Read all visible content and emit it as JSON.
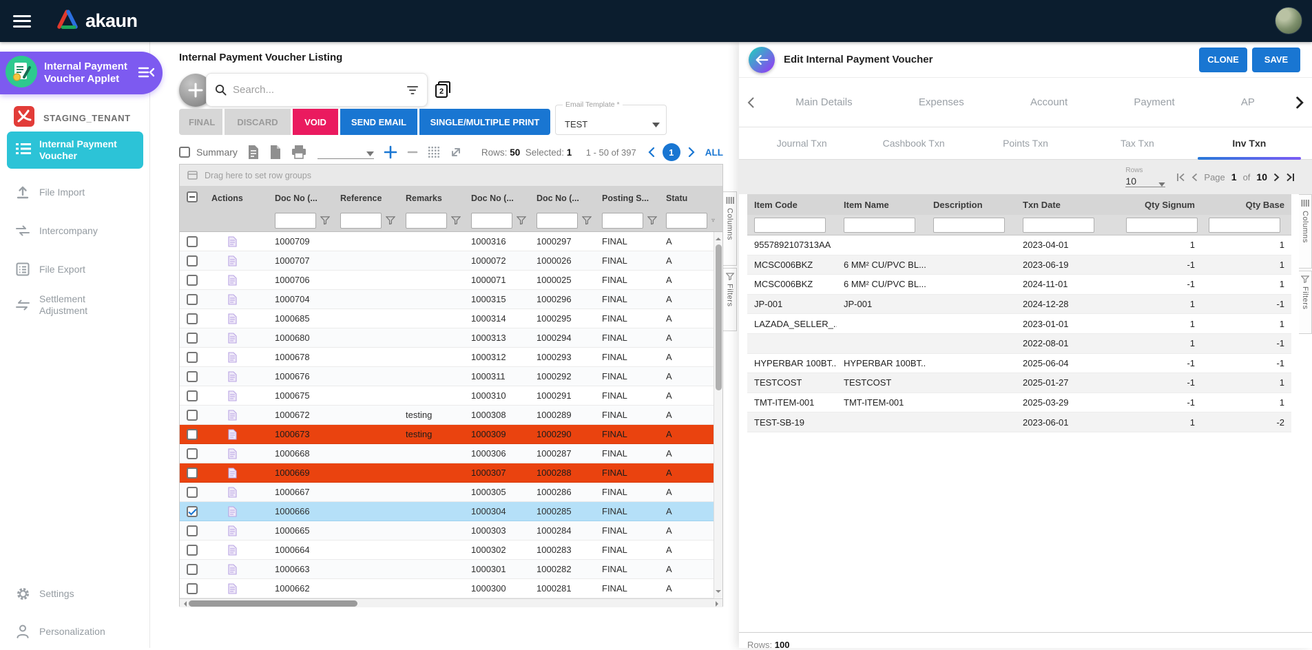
{
  "topbar": {
    "brand": "akaun"
  },
  "sidebar": {
    "applet_line1": "Internal Payment",
    "applet_line2": "Voucher Applet",
    "tenant": "STAGING_TENANT",
    "items": [
      {
        "label": "Internal Payment Voucher",
        "active": true
      },
      {
        "label": "File Import"
      },
      {
        "label": "Intercompany"
      },
      {
        "label": "File Export"
      },
      {
        "label": "Settlement Adjustment"
      }
    ],
    "footer": [
      {
        "label": "Settings"
      },
      {
        "label": "Personalization"
      }
    ]
  },
  "listing": {
    "title": "Internal Payment Voucher Listing",
    "search_placeholder": "Search...",
    "actions": {
      "final": "FINAL",
      "discard": "DISCARD",
      "void": "VOID",
      "send_email": "SEND EMAIL",
      "print": "SINGLE/MULTIPLE PRINT"
    },
    "email_template": {
      "label": "Email Template *",
      "value": "TEST"
    },
    "toolbar": {
      "summary": "Summary",
      "rows_label": "Rows:",
      "rows": "50",
      "selected_label": "Selected:",
      "selected": "1",
      "range": "1 - 50 of 397",
      "page": "1",
      "all": "ALL"
    },
    "drag_hint": "Drag here to set row groups",
    "columns": [
      "",
      "Actions",
      "Doc No (...",
      "Reference",
      "Remarks",
      "Doc No (...",
      "Doc No (...",
      "Posting S...",
      "Statu"
    ],
    "rows": [
      {
        "doc_no": "1000709",
        "reference": "",
        "remarks": "",
        "doc_no_2": "1000316",
        "doc_no_3": "1000297",
        "posting_status": "FINAL",
        "status": "A",
        "highlight": "",
        "checked": false
      },
      {
        "doc_no": "1000707",
        "reference": "",
        "remarks": "",
        "doc_no_2": "1000072",
        "doc_no_3": "1000026",
        "posting_status": "FINAL",
        "status": "A",
        "highlight": "",
        "checked": false
      },
      {
        "doc_no": "1000706",
        "reference": "",
        "remarks": "",
        "doc_no_2": "1000071",
        "doc_no_3": "1000025",
        "posting_status": "FINAL",
        "status": "A",
        "highlight": "",
        "checked": false
      },
      {
        "doc_no": "1000704",
        "reference": "",
        "remarks": "",
        "doc_no_2": "1000315",
        "doc_no_3": "1000296",
        "posting_status": "FINAL",
        "status": "A",
        "highlight": "",
        "checked": false
      },
      {
        "doc_no": "1000685",
        "reference": "",
        "remarks": "",
        "doc_no_2": "1000314",
        "doc_no_3": "1000295",
        "posting_status": "FINAL",
        "status": "A",
        "highlight": "",
        "checked": false
      },
      {
        "doc_no": "1000680",
        "reference": "",
        "remarks": "",
        "doc_no_2": "1000313",
        "doc_no_3": "1000294",
        "posting_status": "FINAL",
        "status": "A",
        "highlight": "",
        "checked": false
      },
      {
        "doc_no": "1000678",
        "reference": "",
        "remarks": "",
        "doc_no_2": "1000312",
        "doc_no_3": "1000293",
        "posting_status": "FINAL",
        "status": "A",
        "highlight": "",
        "checked": false
      },
      {
        "doc_no": "1000676",
        "reference": "",
        "remarks": "",
        "doc_no_2": "1000311",
        "doc_no_3": "1000292",
        "posting_status": "FINAL",
        "status": "A",
        "highlight": "",
        "checked": false
      },
      {
        "doc_no": "1000675",
        "reference": "",
        "remarks": "",
        "doc_no_2": "1000310",
        "doc_no_3": "1000291",
        "posting_status": "FINAL",
        "status": "A",
        "highlight": "",
        "checked": false
      },
      {
        "doc_no": "1000672",
        "reference": "",
        "remarks": "testing",
        "doc_no_2": "1000308",
        "doc_no_3": "1000289",
        "posting_status": "FINAL",
        "status": "A",
        "highlight": "",
        "checked": false
      },
      {
        "doc_no": "1000673",
        "reference": "",
        "remarks": "testing",
        "doc_no_2": "1000309",
        "doc_no_3": "1000290",
        "posting_status": "FINAL",
        "status": "A",
        "highlight": "orange",
        "checked": false
      },
      {
        "doc_no": "1000668",
        "reference": "",
        "remarks": "",
        "doc_no_2": "1000306",
        "doc_no_3": "1000287",
        "posting_status": "FINAL",
        "status": "A",
        "highlight": "",
        "checked": false
      },
      {
        "doc_no": "1000669",
        "reference": "",
        "remarks": "",
        "doc_no_2": "1000307",
        "doc_no_3": "1000288",
        "posting_status": "FINAL",
        "status": "A",
        "highlight": "orange",
        "checked": false
      },
      {
        "doc_no": "1000667",
        "reference": "",
        "remarks": "",
        "doc_no_2": "1000305",
        "doc_no_3": "1000286",
        "posting_status": "FINAL",
        "status": "A",
        "highlight": "",
        "checked": false
      },
      {
        "doc_no": "1000666",
        "reference": "",
        "remarks": "",
        "doc_no_2": "1000304",
        "doc_no_3": "1000285",
        "posting_status": "FINAL",
        "status": "A",
        "highlight": "selected",
        "checked": true
      },
      {
        "doc_no": "1000665",
        "reference": "",
        "remarks": "",
        "doc_no_2": "1000303",
        "doc_no_3": "1000284",
        "posting_status": "FINAL",
        "status": "A",
        "highlight": "",
        "checked": false
      },
      {
        "doc_no": "1000664",
        "reference": "",
        "remarks": "",
        "doc_no_2": "1000302",
        "doc_no_3": "1000283",
        "posting_status": "FINAL",
        "status": "A",
        "highlight": "",
        "checked": false
      },
      {
        "doc_no": "1000663",
        "reference": "",
        "remarks": "",
        "doc_no_2": "1000301",
        "doc_no_3": "1000282",
        "posting_status": "FINAL",
        "status": "A",
        "highlight": "",
        "checked": false
      },
      {
        "doc_no": "1000662",
        "reference": "",
        "remarks": "",
        "doc_no_2": "1000300",
        "doc_no_3": "1000281",
        "posting_status": "FINAL",
        "status": "A",
        "highlight": "",
        "checked": false
      }
    ],
    "side_tabs": [
      "Columns",
      "Filters"
    ]
  },
  "editor": {
    "title": "Edit Internal Payment Voucher",
    "clone": "CLONE",
    "save": "SAVE",
    "tabs": [
      {
        "label": "Main Details"
      },
      {
        "label": "Expenses"
      },
      {
        "label": "Account"
      },
      {
        "label": "Payment"
      },
      {
        "label": "AP"
      }
    ],
    "sub_tabs": [
      {
        "label": "Journal Txn"
      },
      {
        "label": "Cashbook Txn"
      },
      {
        "label": "Points Txn"
      },
      {
        "label": "Tax Txn"
      },
      {
        "label": "Inv Txn",
        "active": true
      }
    ],
    "rows_selector": {
      "label": "Rows",
      "value": "10"
    },
    "pagination": {
      "page_label": "Page",
      "page": "1",
      "of_label": "of",
      "total": "10"
    },
    "columns": [
      "Item Code",
      "Item Name",
      "Description",
      "Txn Date",
      "Qty Signum",
      "Qty Base"
    ],
    "rows": [
      [
        "9557892107313AA",
        "",
        "",
        "2023-04-01",
        "1",
        "1"
      ],
      [
        "MCSC006BKZ",
        "6 MM² CU/PVC BL...",
        "",
        "2023-06-19",
        "-1",
        "1"
      ],
      [
        "MCSC006BKZ",
        "6 MM² CU/PVC BL...",
        "",
        "2024-11-01",
        "-1",
        "1"
      ],
      [
        "JP-001",
        "JP-001",
        "",
        "2024-12-28",
        "1",
        "-1"
      ],
      [
        "LAZADA_SELLER_...",
        "",
        "",
        "2023-01-01",
        "1",
        "1"
      ],
      [
        "",
        "",
        "",
        "2022-08-01",
        "1",
        "-1"
      ],
      [
        "HYPERBAR 100BT...",
        "HYPERBAR 100BT...",
        "",
        "2025-06-04",
        "-1",
        "-1"
      ],
      [
        "TESTCOST",
        "TESTCOST",
        "",
        "2025-01-27",
        "-1",
        "1"
      ],
      [
        "TMT-ITEM-001",
        "TMT-ITEM-001",
        "",
        "2025-03-29",
        "-1",
        "1"
      ],
      [
        "TEST-SB-19",
        "",
        "",
        "2023-06-01",
        "1",
        "-2"
      ]
    ],
    "footer": {
      "rows_label": "Rows:",
      "rows": "100"
    },
    "side_tabs": [
      "Columns",
      "Filters"
    ]
  },
  "icons": {
    "duplicate_badge": "2"
  },
  "colors": {
    "topbar_navy": "#0b1d2e",
    "applet_purple": "#7d5af0",
    "active_teal": "#2cc3d7",
    "accent_blue": "#1976d2",
    "void_pink": "#ea1a5f",
    "row_orange": "#ea430f",
    "row_selected": "#b5e0f8",
    "tenant_red": "#e23c38"
  }
}
